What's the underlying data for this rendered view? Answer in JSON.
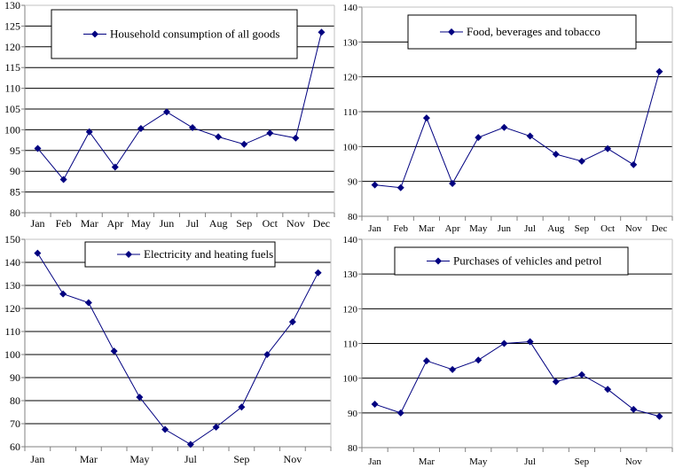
{
  "chart_data": [
    {
      "type": "line",
      "title": "",
      "legend": "Household consumption of all goods",
      "categories": [
        "Jan",
        "Feb",
        "Mar",
        "Apr",
        "May",
        "Jun",
        "Jul",
        "Aug",
        "Sep",
        "Oct",
        "Nov",
        "Dec"
      ],
      "tick_labels": [
        "Jan",
        "Feb",
        "Mar",
        "Apr",
        "May",
        "Jun",
        "Jul",
        "Aug",
        "Sep",
        "Oct",
        "Nov",
        "Dec"
      ],
      "values": [
        95.5,
        88,
        99.5,
        91,
        100.3,
        104.3,
        100.5,
        98.3,
        96.5,
        99.2,
        98,
        123.5
      ],
      "ylim": [
        80,
        130
      ],
      "yticks": [
        80,
        85,
        90,
        95,
        100,
        105,
        110,
        115,
        120,
        125,
        130
      ],
      "grid": true,
      "legend_placement": "top-center"
    },
    {
      "type": "line",
      "title": "",
      "legend": "Food, beverages and tobacco",
      "categories": [
        "Jan",
        "Feb",
        "Mar",
        "Apr",
        "May",
        "Jun",
        "Jul",
        "Aug",
        "Sep",
        "Oct",
        "Nov",
        "Dec"
      ],
      "tick_labels": [
        "Jan",
        "Feb",
        "Mar",
        "Apr",
        "May",
        "Jun",
        "Jul",
        "Aug",
        "Sep",
        "Oct",
        "Nov",
        "Dec"
      ],
      "values": [
        89,
        88.2,
        108.2,
        89.4,
        102.6,
        105.5,
        103,
        97.8,
        95.8,
        99.4,
        94.8,
        121.5
      ],
      "ylim": [
        80,
        140
      ],
      "yticks": [
        80,
        90,
        100,
        110,
        120,
        130,
        140
      ],
      "grid": true,
      "legend_placement": "top-center"
    },
    {
      "type": "line",
      "title": "",
      "legend": "Electricity and heating fuels",
      "categories": [
        "Jan",
        "Feb",
        "Mar",
        "Apr",
        "May",
        "Jun",
        "Jul",
        "Aug",
        "Sep",
        "Oct",
        "Nov",
        "Dec"
      ],
      "tick_labels": [
        "Jan",
        "",
        "Mar",
        "",
        "May",
        "",
        "Jul",
        "",
        "Sep",
        "",
        "Nov",
        ""
      ],
      "values": [
        144,
        126.3,
        122.5,
        101.5,
        81.5,
        67.5,
        61,
        68.5,
        77.2,
        100,
        114.2,
        135.5
      ],
      "ylim": [
        60,
        150
      ],
      "yticks": [
        60,
        70,
        80,
        90,
        100,
        110,
        120,
        130,
        140,
        150
      ],
      "grid": true,
      "legend_placement": "top-center"
    },
    {
      "type": "line",
      "title": "",
      "legend": "Purchases of vehicles and petrol",
      "categories": [
        "Jan",
        "Feb",
        "Mar",
        "Apr",
        "May",
        "Jun",
        "Jul",
        "Aug",
        "Sep",
        "Oct",
        "Nov",
        "Dec"
      ],
      "tick_labels": [
        "Jan",
        "",
        "Mar",
        "",
        "May",
        "",
        "Jul",
        "",
        "Sep",
        "",
        "Nov",
        ""
      ],
      "values": [
        92.5,
        90,
        105,
        102.5,
        105.2,
        110,
        110.5,
        99,
        101,
        96.8,
        91,
        89
      ],
      "ylim": [
        80,
        140
      ],
      "yticks": [
        80,
        90,
        100,
        110,
        120,
        130,
        140
      ],
      "grid": true,
      "legend_placement": "top-center"
    }
  ],
  "colors": {
    "series": "#000080",
    "grid": "#000000",
    "axis": "#808080"
  }
}
